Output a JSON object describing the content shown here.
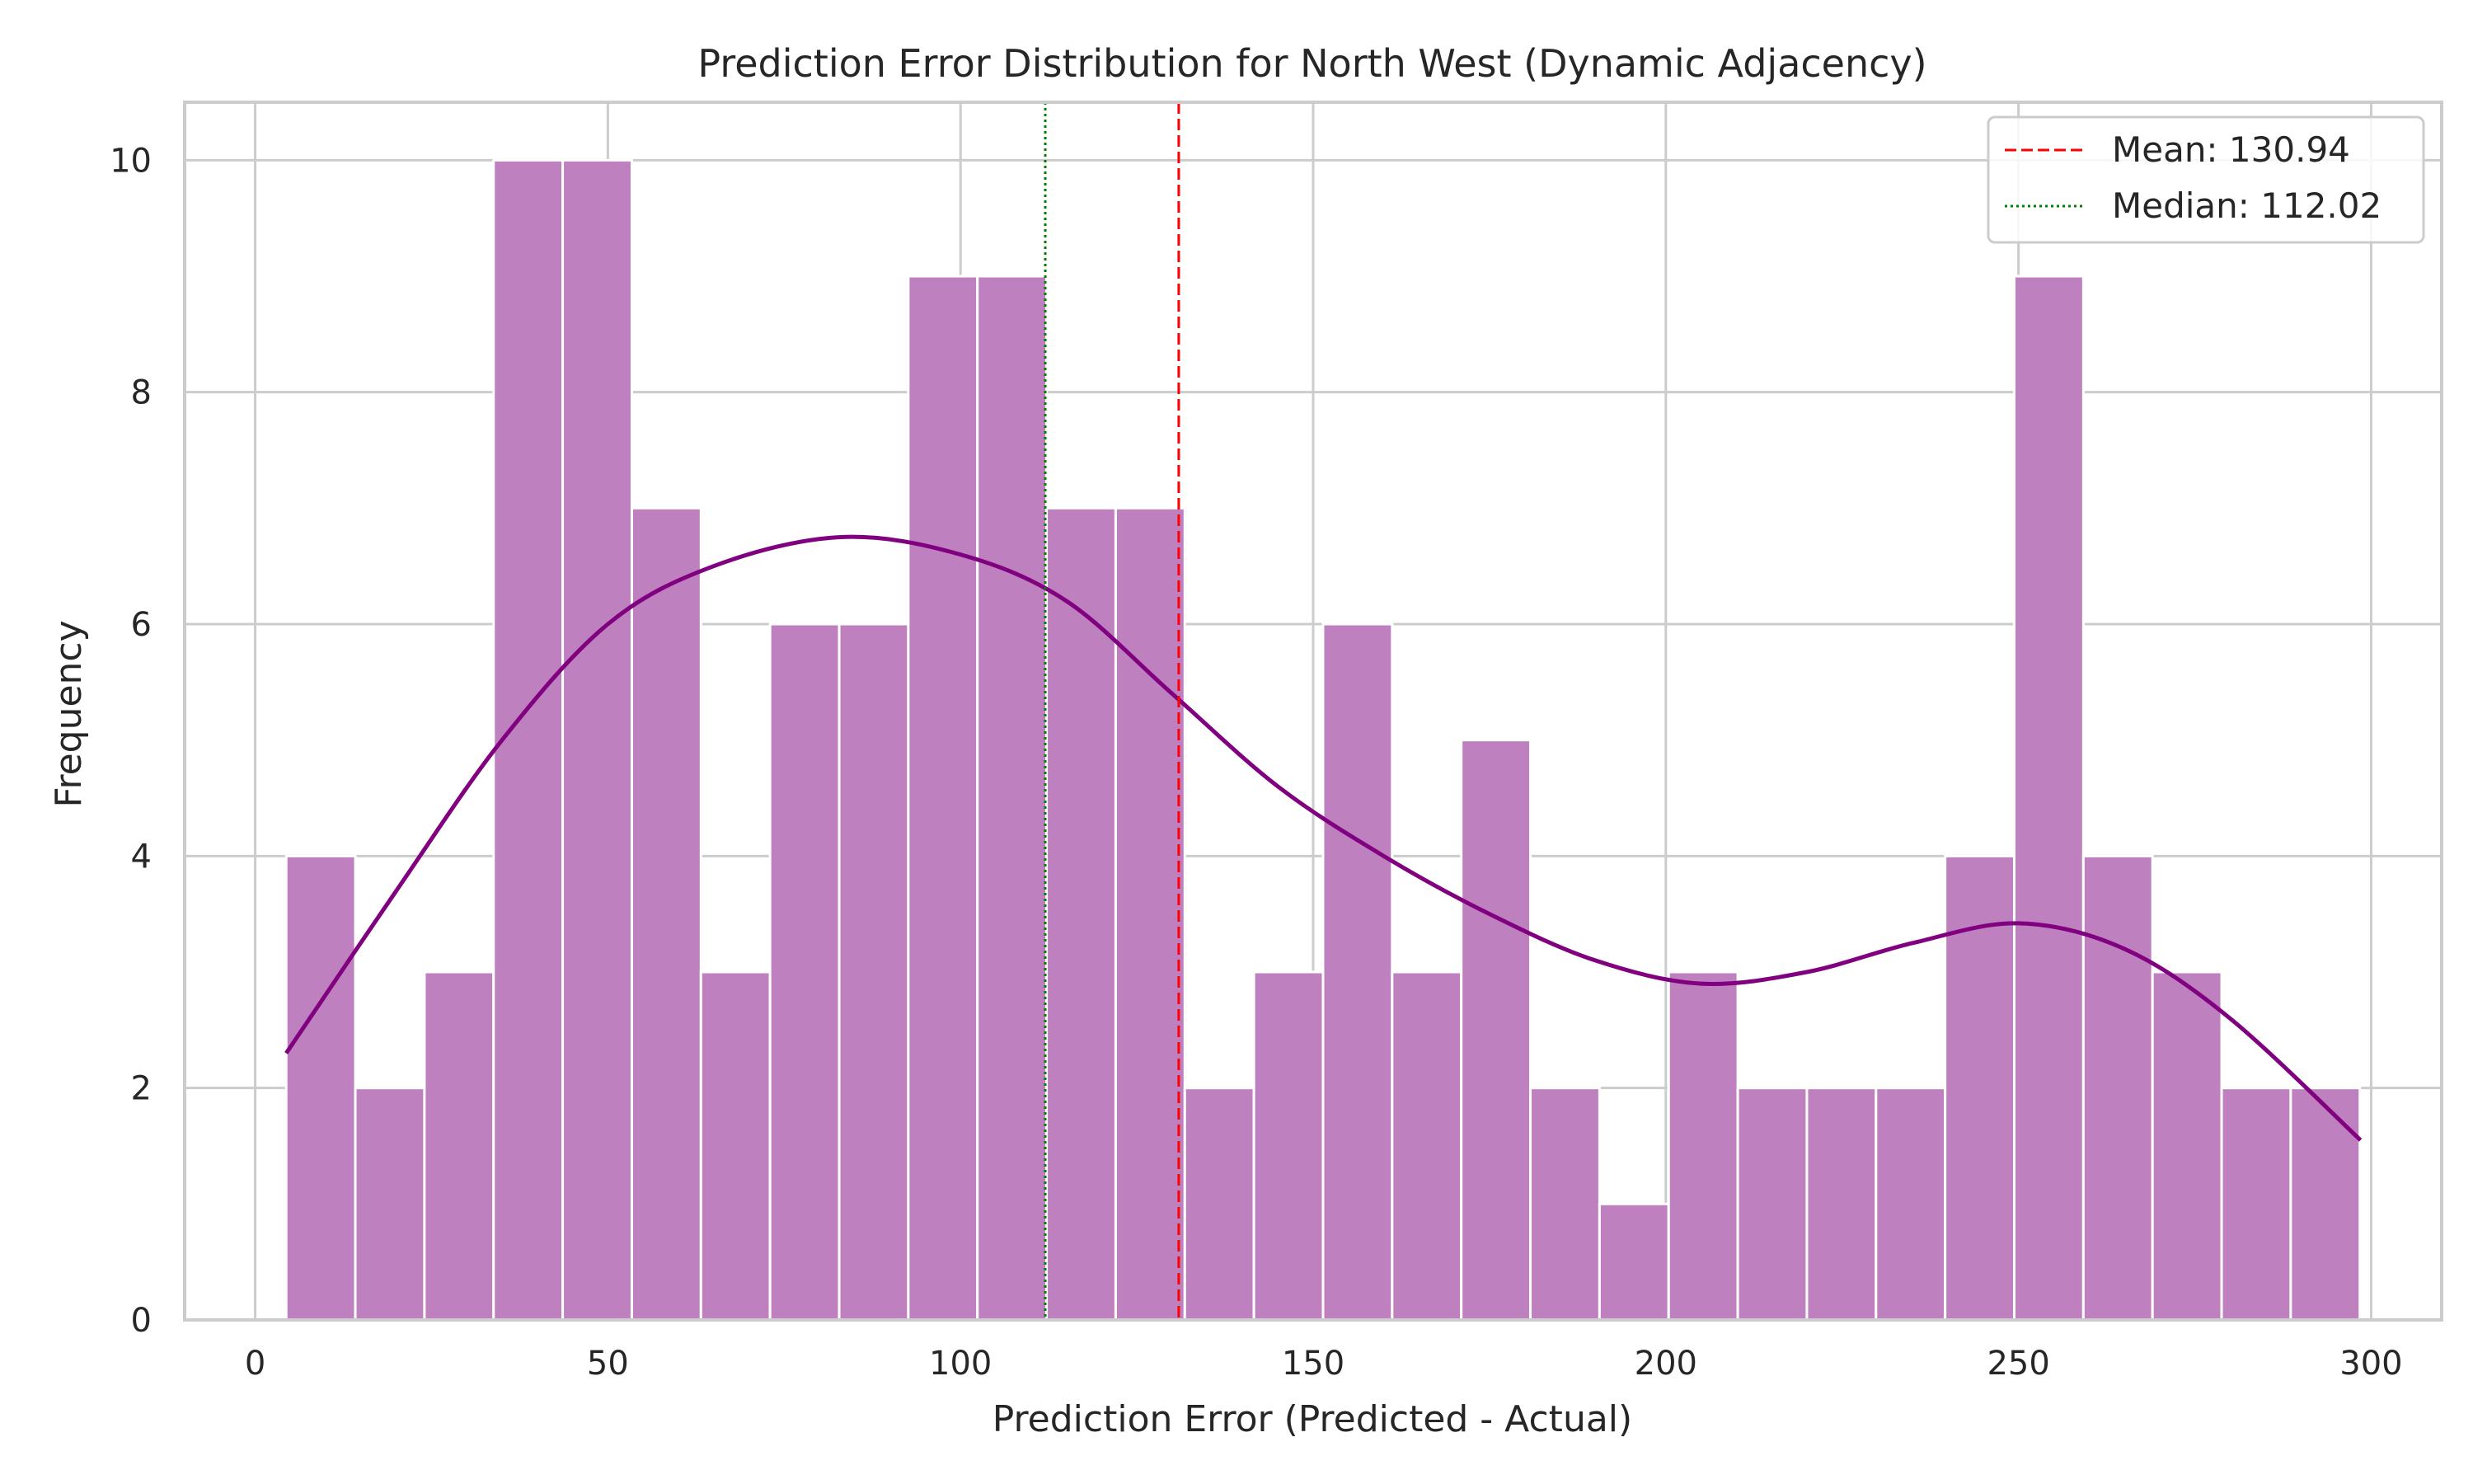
{
  "chart_data": {
    "type": "bar",
    "title": "Prediction Error Distribution for North West (Dynamic Adjacency)",
    "xlabel": "Prediction Error (Predicted - Actual)",
    "ylabel": "Frequency",
    "xlim": [
      -10,
      310
    ],
    "ylim": [
      0,
      10.5
    ],
    "xticks": [
      0,
      50,
      100,
      150,
      200,
      250,
      300
    ],
    "yticks": [
      0,
      2,
      4,
      6,
      8,
      10
    ],
    "grid": true,
    "legend_position": "top-right",
    "histogram": {
      "bin_start": 4.4,
      "bin_width": 9.8,
      "counts": [
        4,
        2,
        3,
        10,
        10,
        7,
        3,
        6,
        6,
        9,
        9,
        7,
        7,
        2,
        3,
        6,
        3,
        5,
        2,
        1,
        3,
        2,
        2,
        2,
        4,
        9,
        4,
        3,
        2,
        2
      ],
      "color": "#bf80bf"
    },
    "kde": {
      "name": "",
      "color": "#800080",
      "x": [
        4.4,
        20,
        35,
        50,
        65,
        83,
        100,
        115,
        130,
        145,
        160,
        175,
        190,
        205,
        220,
        235,
        250,
        265,
        280,
        298.5
      ],
      "y": [
        2.3,
        3.7,
        5.0,
        6.0,
        6.5,
        6.75,
        6.6,
        6.2,
        5.4,
        4.6,
        4.0,
        3.5,
        3.1,
        2.9,
        3.0,
        3.25,
        3.42,
        3.2,
        2.6,
        1.55
      ]
    },
    "lines": [
      {
        "label": "Mean: 130.94",
        "value": 130.94,
        "color": "#ff0000",
        "style": "dashed"
      },
      {
        "label": "Median: 112.02",
        "value": 112.02,
        "color": "#008000",
        "style": "dotted"
      }
    ]
  }
}
